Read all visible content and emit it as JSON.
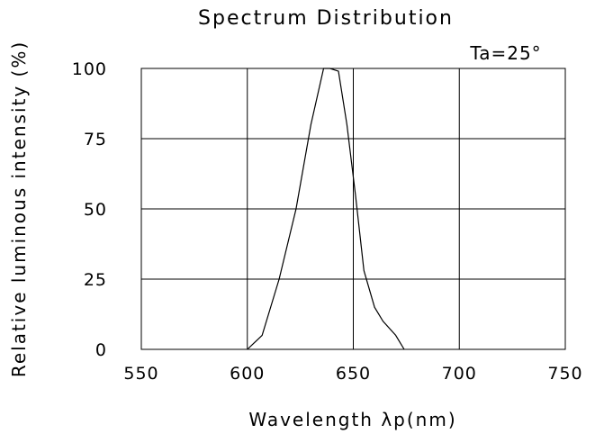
{
  "chart_data": {
    "type": "line",
    "title": "Spectrum Distribution",
    "annotation": "Ta=25°",
    "xlabel": "Wavelength λp(nm)",
    "ylabel": "Relative luminous intensity (%)",
    "xlim": [
      550,
      750
    ],
    "ylim": [
      0,
      100
    ],
    "x_ticks": [
      550,
      600,
      650,
      700,
      750
    ],
    "y_ticks": [
      0,
      25,
      50,
      75,
      100
    ],
    "grid": true,
    "x": [
      600,
      607,
      615,
      623,
      630,
      636,
      639,
      643,
      647,
      651,
      655,
      660,
      664,
      670,
      674
    ],
    "y": [
      0,
      5,
      25,
      50,
      80,
      100,
      100,
      99,
      80,
      55,
      28,
      15,
      10,
      5,
      0
    ],
    "colors": {
      "line": "#000000",
      "grid": "#000000",
      "background": "#ffffff"
    }
  }
}
